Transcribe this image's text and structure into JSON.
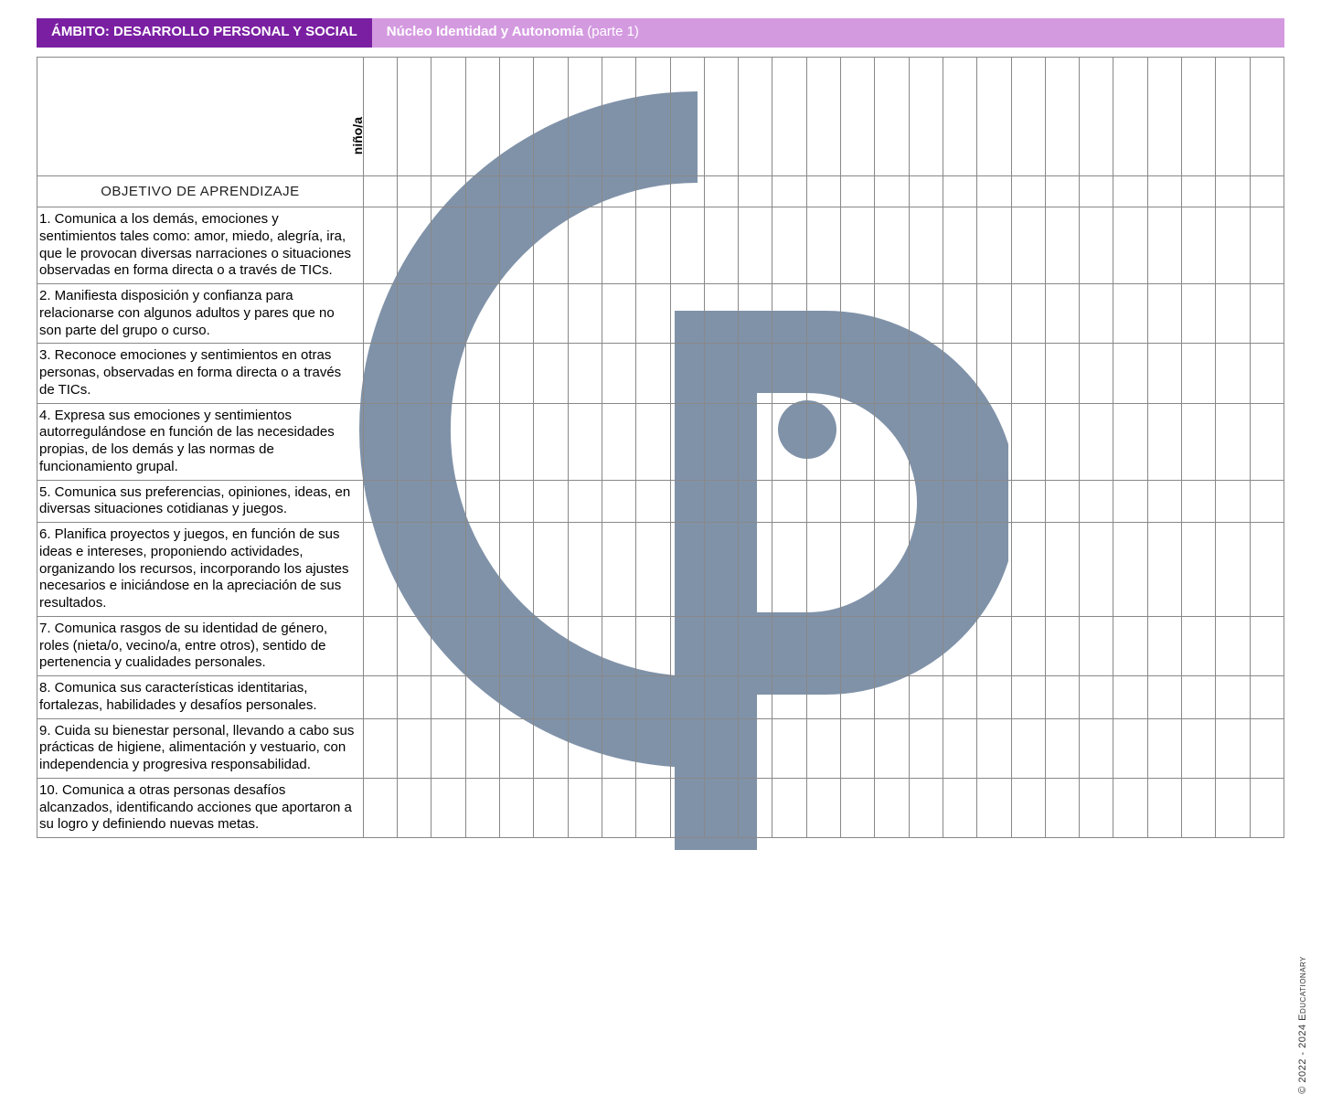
{
  "header": {
    "left_bg": "#7a1fa2",
    "right_bg": "#d49ae0",
    "left_text": "ÁMBITO: DESARROLLO PERSONAL Y SOCIAL",
    "right_bold": "Núcleo Identidad y Autonomía",
    "right_thin": "(parte 1)"
  },
  "table": {
    "nino_label": "niño/a",
    "objective_header": "OBJETIVO DE APRENDIZAJE",
    "grid_columns": 27,
    "objectives": [
      "1. Comunica a los demás, emociones y sentimientos tales como: amor, miedo, alegría, ira, que le provocan diversas narraciones o situaciones observadas en forma directa o a través de TICs.",
      "2. Manifiesta disposición y confianza para relacionarse con algunos adultos y pares que no son parte del grupo o curso.",
      "3. Reconoce emociones y sentimientos en otras personas, observadas en forma directa o a través de TICs.",
      "4. Expresa sus emociones y sentimientos autorregulándose en función de las necesidades propias, de los demás y las normas de funcionamiento grupal.",
      "5. Comunica sus preferencias, opiniones, ideas, en diversas situaciones cotidianas y juegos.",
      "6. Planifica proyectos y juegos, en función de sus ideas e intereses, proponiendo actividades, organizando los recursos, incorporando los ajustes necesarios e iniciándose en la apreciación de sus resultados.",
      "7. Comunica rasgos de su identidad de género, roles (nieta/o, vecino/a, entre otros), sentido de pertenencia y cualidades personales.",
      "8. Comunica sus características identitarias, fortalezas, habilidades y desafíos personales.",
      "9. Cuida su bienestar personal, llevando a cabo sus prácticas de higiene, alimentación y vestuario, con independencia y progresiva responsabilidad.",
      "10. Comunica a otras personas desafíos alcanzados, identificando acciones que aportaron a su logro y definiendo nuevas metas."
    ]
  },
  "watermark": {
    "color": "#6b7f99"
  },
  "copyright": "© 2022 - 2024 Educationary"
}
